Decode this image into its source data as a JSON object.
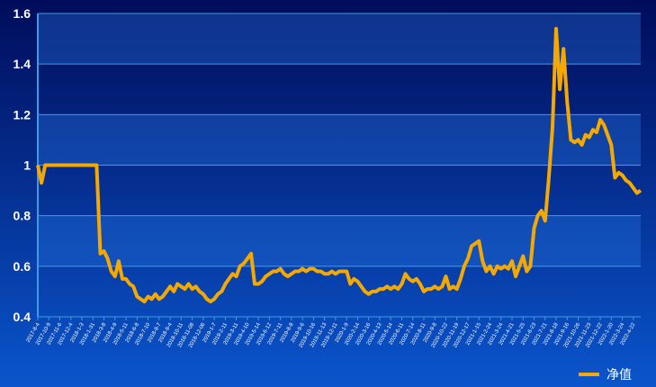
{
  "chart_data": {
    "type": "line",
    "categories": [
      "2017-8-4",
      null,
      null,
      "2017-10-9",
      null,
      null,
      "2017-11-6",
      null,
      null,
      "2017-12-4",
      null,
      null,
      "2018-1-3",
      null,
      null,
      "2018-1-31",
      null,
      null,
      "2018-3-8",
      null,
      null,
      "2018-4-9",
      null,
      null,
      "2018-5-11",
      null,
      null,
      "2018-6-8",
      null,
      null,
      "2018-7-10",
      null,
      null,
      "2018-8-7",
      null,
      null,
      "2018-9-4",
      null,
      null,
      "2018-10-11",
      null,
      null,
      "2018-11-08",
      null,
      null,
      "2018-12-06",
      null,
      null,
      "2019-1-7",
      null,
      null,
      "2019-2-11",
      null,
      null,
      "2019-3-11",
      null,
      null,
      "2019-4-10",
      null,
      null,
      "2019-5-14",
      null,
      null,
      "2019-6-12",
      null,
      null,
      "2019-7-11",
      null,
      null,
      "2019-8-8",
      null,
      null,
      "2019-9-6",
      null,
      null,
      "2019-10-16",
      null,
      null,
      "2019-11-13",
      null,
      null,
      "2019-12-11",
      null,
      null,
      "2020-1-9",
      null,
      null,
      "2020-2-14",
      null,
      null,
      "2020-3-16",
      null,
      null,
      "2020-4-13",
      null,
      null,
      "2020-5-14",
      null,
      null,
      "2020-6-11",
      null,
      null,
      "2020-7-14",
      null,
      null,
      "2020-8-11",
      null,
      null,
      "2020-9-8",
      null,
      null,
      "2020-10-22",
      null,
      null,
      "2020-11-19",
      null,
      null,
      "2020-12-17",
      null,
      null,
      "2021-1-15",
      null,
      null,
      "2021-2-24",
      null,
      null,
      "2021-3-24",
      null,
      null,
      "2021-4-21",
      null,
      null,
      "2021-5-25",
      null,
      null,
      "2021-6-23",
      null,
      null,
      "2021-7-21",
      null,
      null,
      "2021-8-18",
      null,
      null,
      "2021-9-16",
      null,
      null,
      "2021-10-26",
      null,
      null,
      "2021-11-23",
      null,
      null,
      "2021-12-22",
      null,
      null,
      "2022-1-20",
      null,
      null,
      "2022-3-24",
      null,
      null,
      "2022-4-22",
      null,
      null
    ],
    "series": [
      {
        "name": "净值",
        "color": "#f5a800",
        "values": [
          1.0,
          0.93,
          1.0,
          1.0,
          1.0,
          1.0,
          1.0,
          1.0,
          1.0,
          1.0,
          1.0,
          1.0,
          1.0,
          1.0,
          1.0,
          1.0,
          1.0,
          0.65,
          0.66,
          0.63,
          0.58,
          0.56,
          0.62,
          0.55,
          0.55,
          0.53,
          0.52,
          0.48,
          0.47,
          0.46,
          0.48,
          0.47,
          0.49,
          0.47,
          0.48,
          0.5,
          0.52,
          0.5,
          0.53,
          0.52,
          0.51,
          0.53,
          0.51,
          0.52,
          0.5,
          0.49,
          0.47,
          0.46,
          0.47,
          0.49,
          0.5,
          0.53,
          0.55,
          0.57,
          0.56,
          0.6,
          0.61,
          0.63,
          0.65,
          0.53,
          0.53,
          0.54,
          0.56,
          0.57,
          0.58,
          0.58,
          0.59,
          0.57,
          0.56,
          0.57,
          0.58,
          0.58,
          0.59,
          0.58,
          0.59,
          0.59,
          0.58,
          0.58,
          0.57,
          0.57,
          0.58,
          0.57,
          0.58,
          0.58,
          0.58,
          0.53,
          0.55,
          0.54,
          0.52,
          0.5,
          0.49,
          0.5,
          0.5,
          0.51,
          0.51,
          0.52,
          0.51,
          0.52,
          0.51,
          0.53,
          0.57,
          0.55,
          0.54,
          0.55,
          0.53,
          0.5,
          0.51,
          0.51,
          0.52,
          0.51,
          0.52,
          0.56,
          0.51,
          0.52,
          0.51,
          0.55,
          0.6,
          0.63,
          0.68,
          0.69,
          0.7,
          0.62,
          0.58,
          0.6,
          0.57,
          0.6,
          0.59,
          0.6,
          0.59,
          0.62,
          0.56,
          0.6,
          0.64,
          0.58,
          0.6,
          0.75,
          0.8,
          0.82,
          0.78,
          0.95,
          1.15,
          1.54,
          1.3,
          1.46,
          1.25,
          1.1,
          1.09,
          1.1,
          1.08,
          1.12,
          1.11,
          1.14,
          1.13,
          1.18,
          1.16,
          1.12,
          1.08,
          0.95,
          0.97,
          0.96,
          0.94,
          0.93,
          0.91,
          0.89,
          0.9
        ]
      }
    ],
    "ylim": [
      0.4,
      1.6
    ],
    "yticks": [
      0.4,
      0.6,
      0.8,
      1,
      1.2,
      1.4,
      1.6
    ],
    "grid": true,
    "legend": "bottom-right"
  }
}
